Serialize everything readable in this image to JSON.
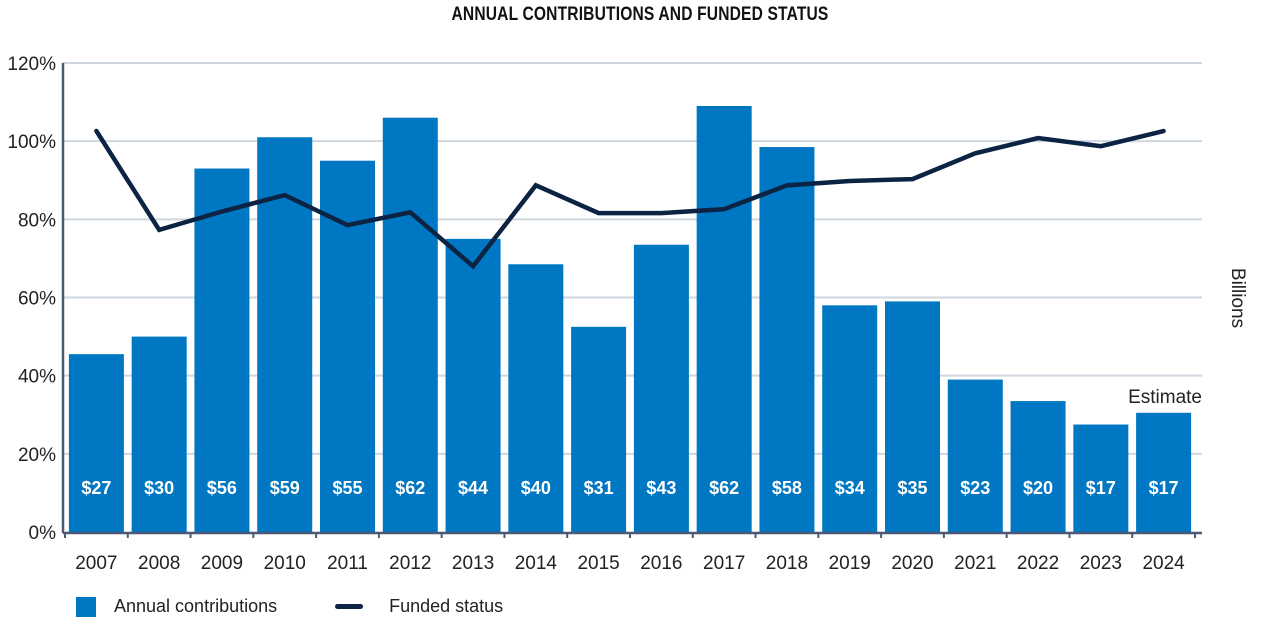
{
  "chart_data": {
    "type": "bar",
    "title": "ANNUAL CONTRIBUTIONS AND FUNDED STATUS",
    "xlabel": "",
    "ylabel": "",
    "ylabel_right": "Billions",
    "ylim": [
      0,
      120
    ],
    "yticks": [
      "0%",
      "20%",
      "40%",
      "60%",
      "80%",
      "100%",
      "120%"
    ],
    "grid": true,
    "legend_position": "bottom-left",
    "categories": [
      "2007",
      "2008",
      "2009",
      "2010",
      "2011",
      "2012",
      "2013",
      "2014",
      "2015",
      "2016",
      "2017",
      "2018",
      "2019",
      "2020",
      "2021",
      "2022",
      "2023",
      "2024"
    ],
    "series": [
      {
        "name": "Annual contributions",
        "type": "bar",
        "color": "#0077c2",
        "values": [
          27,
          30,
          56,
          59,
          55,
          62,
          44,
          40,
          31,
          43,
          62,
          58,
          34,
          35,
          23,
          20,
          17,
          17
        ],
        "labels": [
          "$27",
          "$30",
          "$56",
          "$59",
          "$55",
          "$62",
          "$44",
          "$40",
          "$31",
          "$43",
          "$62",
          "$58",
          "$34",
          "$35",
          "$23",
          "$20",
          "$17",
          "$17"
        ],
        "bar_height_pct": [
          45.5,
          50,
          93,
          101,
          95,
          106,
          75,
          68.5,
          52.5,
          73.5,
          109,
          98.5,
          58,
          59,
          39,
          33.5,
          27.5,
          30.5
        ]
      },
      {
        "name": "Funded status",
        "type": "line",
        "color": "#0c2344",
        "values": [
          102.6,
          77.3,
          82,
          86.2,
          78.5,
          81.8,
          68,
          88.7,
          81.6,
          81.6,
          82.6,
          88.7,
          89.8,
          90.3,
          96.9,
          100.8,
          98.7,
          102.6
        ]
      }
    ],
    "annotations": [
      {
        "text": "Estimate",
        "category": "2024"
      }
    ]
  },
  "legend": {
    "bar_label": "Annual contributions",
    "line_label": "Funded status"
  }
}
